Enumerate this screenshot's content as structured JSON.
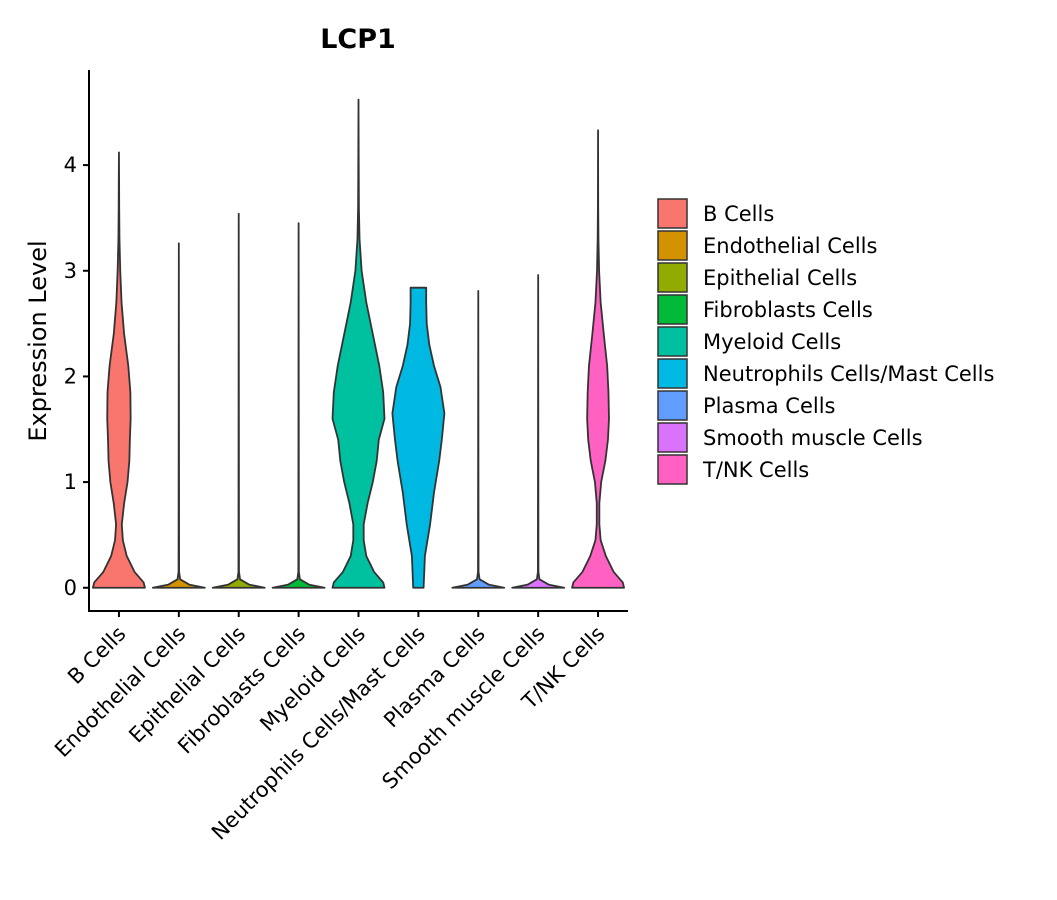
{
  "chart_data": {
    "type": "violin",
    "title": "LCP1",
    "xlabel": "",
    "ylabel": "Expression Level",
    "ylim": [
      -0.22,
      4.9
    ],
    "yticks": [
      "0",
      "1",
      "2",
      "3",
      "4"
    ],
    "categories": [
      "B Cells",
      "Endothelial Cells",
      "Epithelial Cells",
      "Fibroblasts Cells",
      "Myeloid Cells",
      "Neutrophils Cells/Mast Cells",
      "Plasma Cells",
      "Smooth muscle Cells",
      "T/NK Cells"
    ],
    "colors": [
      "#F8766D",
      "#D39200",
      "#93AA00",
      "#00BA38",
      "#00C19F",
      "#00B9E3",
      "#619CFF",
      "#DB72FB",
      "#FF61C3"
    ],
    "max_values": [
      4.12,
      3.26,
      3.54,
      3.45,
      4.62,
      2.84,
      2.81,
      2.96,
      4.33
    ],
    "density_profiles": [
      {
        "y": [
          0,
          0.05,
          0.15,
          0.3,
          0.45,
          0.6,
          0.8,
          1.0,
          1.2,
          1.4,
          1.6,
          1.85,
          2.1,
          2.4,
          2.7,
          3.0,
          3.3,
          3.6,
          3.9,
          4.12
        ],
        "w": [
          1,
          0.95,
          0.6,
          0.3,
          0.15,
          0.11,
          0.2,
          0.33,
          0.4,
          0.42,
          0.45,
          0.44,
          0.36,
          0.2,
          0.1,
          0.05,
          0.02,
          0.01,
          0.005,
          0
        ]
      },
      {
        "y": [
          0,
          0.03,
          0.08,
          0.15,
          3.26
        ],
        "w": [
          1,
          0.4,
          0.05,
          0.01,
          0
        ]
      },
      {
        "y": [
          0,
          0.03,
          0.08,
          0.15,
          3.54
        ],
        "w": [
          1,
          0.4,
          0.05,
          0.01,
          0
        ]
      },
      {
        "y": [
          0,
          0.03,
          0.08,
          0.15,
          3.45
        ],
        "w": [
          1,
          0.4,
          0.05,
          0.01,
          0
        ]
      },
      {
        "y": [
          0,
          0.05,
          0.15,
          0.3,
          0.45,
          0.6,
          0.8,
          1.0,
          1.2,
          1.4,
          1.6,
          1.85,
          2.1,
          2.4,
          2.7,
          3.0,
          3.3,
          3.6,
          4.0,
          4.3,
          4.62
        ],
        "w": [
          1,
          0.95,
          0.6,
          0.3,
          0.2,
          0.2,
          0.35,
          0.55,
          0.7,
          0.78,
          1.0,
          0.95,
          0.8,
          0.55,
          0.3,
          0.12,
          0.04,
          0.015,
          0.008,
          0.004,
          0
        ]
      },
      {
        "y": [
          0,
          0.3,
          0.6,
          0.9,
          1.2,
          1.4,
          1.65,
          1.9,
          2.1,
          2.3,
          2.5,
          2.7,
          2.84
        ],
        "w": [
          0.2,
          0.25,
          0.45,
          0.6,
          0.8,
          0.9,
          1.0,
          0.85,
          0.6,
          0.42,
          0.32,
          0.3,
          0.3
        ]
      },
      {
        "y": [
          0,
          0.03,
          0.08,
          0.15,
          2.81
        ],
        "w": [
          1,
          0.4,
          0.05,
          0.01,
          0
        ]
      },
      {
        "y": [
          0,
          0.03,
          0.08,
          0.15,
          2.96
        ],
        "w": [
          1,
          0.4,
          0.05,
          0.01,
          0
        ]
      },
      {
        "y": [
          0,
          0.05,
          0.15,
          0.3,
          0.45,
          0.6,
          0.8,
          1.0,
          1.2,
          1.4,
          1.6,
          1.85,
          2.1,
          2.4,
          2.7,
          3.0,
          3.3,
          3.6,
          3.9,
          4.33
        ],
        "w": [
          1,
          0.95,
          0.6,
          0.3,
          0.1,
          0.05,
          0.05,
          0.12,
          0.28,
          0.38,
          0.42,
          0.4,
          0.35,
          0.22,
          0.1,
          0.04,
          0.015,
          0.006,
          0.003,
          0
        ]
      }
    ],
    "legend": {
      "position": "right",
      "entries": [
        "B Cells",
        "Endothelial Cells",
        "Epithelial Cells",
        "Fibroblasts Cells",
        "Myeloid Cells",
        "Neutrophils Cells/Mast Cells",
        "Plasma Cells",
        "Smooth muscle Cells",
        "T/NK Cells"
      ]
    }
  }
}
